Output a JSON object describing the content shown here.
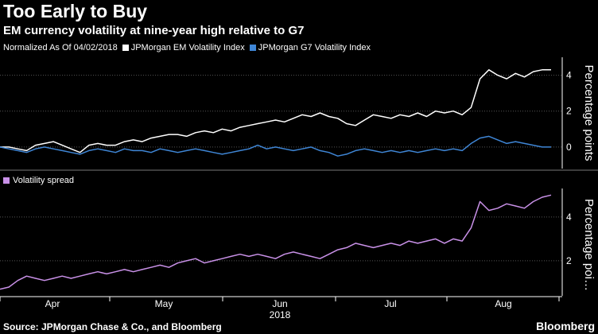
{
  "title": "Too Early to Buy",
  "subtitle": "EM currency volatility at nine-year high relative to G7",
  "legend": {
    "normalized_label": "Normalized As Of 04/02/2018",
    "em_label": "JPMorgan EM Volatility Index",
    "g7_label": "JPMorgan G7 Volatility Index"
  },
  "spread_legend": "Volatility spread",
  "footer": {
    "source": "Source: JPMorgan Chase & Co., and Bloomberg",
    "brand": "Bloomberg"
  },
  "colors": {
    "em": "#ffffff",
    "g7": "#3f86d6",
    "spread": "#c991e8",
    "grid": "#555555"
  },
  "chart_data": [
    {
      "type": "line",
      "ylabel": "Percentage points",
      "ylim": [
        -1.2,
        5.0
      ],
      "yticks": [
        0,
        2,
        4
      ],
      "series": [
        {
          "name": "JPMorgan EM Volatility Index",
          "values": [
            0,
            0,
            -0.1,
            -0.2,
            0.1,
            0.2,
            0.3,
            0.1,
            -0.1,
            -0.3,
            0.1,
            0.2,
            0.1,
            0.1,
            0.3,
            0.4,
            0.3,
            0.5,
            0.6,
            0.7,
            0.7,
            0.6,
            0.8,
            0.9,
            0.8,
            1.0,
            0.9,
            1.1,
            1.2,
            1.3,
            1.4,
            1.5,
            1.4,
            1.6,
            1.8,
            1.7,
            1.9,
            1.7,
            1.6,
            1.3,
            1.2,
            1.5,
            1.8,
            1.7,
            1.6,
            1.8,
            1.7,
            1.9,
            1.7,
            2.0,
            1.9,
            2.0,
            1.8,
            2.2,
            3.8,
            4.3,
            4.0,
            3.8,
            4.1,
            3.9,
            4.2,
            4.3,
            4.3
          ]
        },
        {
          "name": "JPMorgan G7 Volatility Index",
          "values": [
            0,
            -0.1,
            -0.2,
            -0.3,
            -0.1,
            0,
            -0.1,
            -0.2,
            -0.3,
            -0.4,
            -0.2,
            -0.1,
            -0.2,
            -0.3,
            -0.1,
            -0.2,
            -0.2,
            -0.3,
            -0.1,
            -0.2,
            -0.3,
            -0.2,
            -0.1,
            -0.2,
            -0.3,
            -0.4,
            -0.3,
            -0.2,
            -0.1,
            0.1,
            -0.1,
            0,
            -0.1,
            -0.2,
            -0.1,
            0,
            -0.2,
            -0.3,
            -0.5,
            -0.4,
            -0.2,
            -0.1,
            -0.2,
            -0.3,
            -0.2,
            -0.3,
            -0.2,
            -0.3,
            -0.2,
            -0.1,
            -0.2,
            -0.1,
            -0.2,
            0.2,
            0.5,
            0.6,
            0.4,
            0.2,
            0.3,
            0.2,
            0.1,
            0,
            0
          ]
        }
      ]
    },
    {
      "type": "line",
      "ylabel": "Percentage poi…",
      "ylim": [
        0.4,
        5.3
      ],
      "yticks": [
        2,
        4
      ],
      "series": [
        {
          "name": "Volatility spread",
          "values": [
            0.7,
            0.8,
            1.1,
            1.3,
            1.2,
            1.1,
            1.2,
            1.3,
            1.2,
            1.3,
            1.4,
            1.5,
            1.4,
            1.5,
            1.6,
            1.5,
            1.6,
            1.7,
            1.8,
            1.7,
            1.9,
            2.0,
            2.1,
            1.9,
            2.0,
            2.1,
            2.2,
            2.3,
            2.2,
            2.3,
            2.2,
            2.1,
            2.3,
            2.4,
            2.3,
            2.2,
            2.1,
            2.3,
            2.5,
            2.6,
            2.8,
            2.7,
            2.6,
            2.7,
            2.8,
            2.7,
            2.9,
            2.8,
            2.9,
            3.0,
            2.8,
            3.0,
            2.9,
            3.5,
            4.7,
            4.3,
            4.4,
            4.6,
            4.5,
            4.4,
            4.7,
            4.9,
            5.0
          ]
        }
      ]
    }
  ],
  "x_axis": {
    "tick_labels": [
      "Apr",
      "May",
      "Jun",
      "Jul",
      "Aug"
    ],
    "year_label": "2018"
  }
}
